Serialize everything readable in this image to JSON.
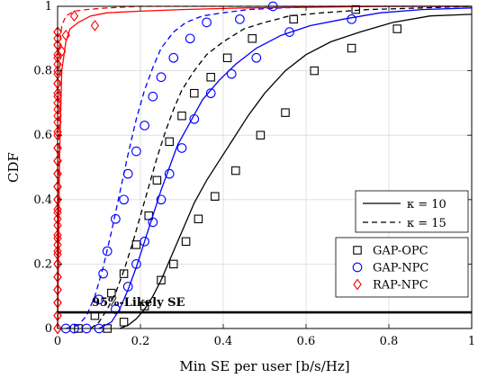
{
  "chart_data": {
    "type": "line",
    "xlabel": "Min SE per user [b/s/Hz]",
    "ylabel": "CDF",
    "xlim": [
      0,
      1
    ],
    "ylim": [
      0,
      1
    ],
    "xticks": [
      0,
      0.2,
      0.4,
      0.6,
      0.8,
      1
    ],
    "yticks": [
      0,
      0.2,
      0.4,
      0.6,
      0.8,
      1
    ],
    "x_tick_labels": [
      "0",
      "0.2",
      "0.4",
      "0.6",
      "0.8",
      "1"
    ],
    "y_tick_labels": [
      "0",
      "0.2",
      "0.4",
      "0.6",
      "0.8",
      "1"
    ],
    "grid": true,
    "legend_placement": "bottom-right",
    "linestyle_legend": [
      {
        "label": "κ = 10",
        "dash": "solid"
      },
      {
        "label": "κ = 15",
        "dash": "dashed"
      }
    ],
    "marker_legend": [
      {
        "label": "GAP-OPC",
        "marker": "square",
        "color": "#000000"
      },
      {
        "label": "GAP-NPC",
        "marker": "circle",
        "color": "#0000ff"
      },
      {
        "label": "RAP-NPC",
        "marker": "diamond",
        "color": "#ff0000"
      }
    ],
    "reference_line": {
      "y": 0.05,
      "label": "95%-Likely SE"
    },
    "series": [
      {
        "scheme": "GAP-OPC",
        "kappa": 10,
        "color": "#000000",
        "marker": "square",
        "dash": "solid",
        "x": [
          0.15,
          0.17,
          0.19,
          0.21,
          0.23,
          0.25,
          0.27,
          0.29,
          0.31,
          0.33,
          0.36,
          0.39,
          0.42,
          0.46,
          0.5,
          0.55,
          0.6,
          0.66,
          0.73,
          0.81,
          0.9,
          1.0
        ],
        "y": [
          0.0,
          0.01,
          0.03,
          0.06,
          0.1,
          0.15,
          0.21,
          0.27,
          0.33,
          0.39,
          0.46,
          0.52,
          0.58,
          0.66,
          0.73,
          0.8,
          0.85,
          0.89,
          0.92,
          0.95,
          0.97,
          0.975
        ],
        "markers_x": [
          0.12,
          0.16,
          0.21,
          0.25,
          0.28,
          0.31,
          0.34,
          0.38,
          0.43,
          0.49,
          0.55,
          0.62,
          0.71,
          0.82
        ],
        "markers_y": [
          0.0,
          0.02,
          0.07,
          0.15,
          0.2,
          0.27,
          0.34,
          0.41,
          0.49,
          0.6,
          0.67,
          0.8,
          0.87,
          0.93
        ]
      },
      {
        "scheme": "GAP-OPC",
        "kappa": 15,
        "color": "#000000",
        "marker": "square",
        "dash": "dashed",
        "x": [
          0.08,
          0.1,
          0.12,
          0.14,
          0.16,
          0.18,
          0.2,
          0.22,
          0.24,
          0.26,
          0.28,
          0.3,
          0.33,
          0.36,
          0.4,
          0.45,
          0.5,
          0.56,
          0.64,
          0.75,
          0.88,
          1.0
        ],
        "y": [
          0.0,
          0.02,
          0.06,
          0.11,
          0.18,
          0.26,
          0.35,
          0.44,
          0.53,
          0.61,
          0.68,
          0.74,
          0.8,
          0.85,
          0.89,
          0.93,
          0.95,
          0.97,
          0.98,
          0.99,
          0.995,
          1.0
        ],
        "markers_x": [
          0.05,
          0.09,
          0.13,
          0.16,
          0.19,
          0.22,
          0.24,
          0.27,
          0.3,
          0.33,
          0.37,
          0.41,
          0.47,
          0.57,
          0.72
        ],
        "markers_y": [
          0.0,
          0.04,
          0.11,
          0.17,
          0.26,
          0.35,
          0.46,
          0.58,
          0.66,
          0.73,
          0.78,
          0.84,
          0.9,
          0.96,
          0.99
        ]
      },
      {
        "scheme": "GAP-NPC",
        "kappa": 10,
        "color": "#0000ff",
        "marker": "circle",
        "dash": "solid",
        "x": [
          0.1,
          0.13,
          0.15,
          0.17,
          0.19,
          0.21,
          0.23,
          0.25,
          0.27,
          0.29,
          0.32,
          0.35,
          0.39,
          0.43,
          0.48,
          0.54,
          0.61,
          0.69,
          0.78,
          0.88,
          1.0
        ],
        "y": [
          0.0,
          0.02,
          0.06,
          0.12,
          0.19,
          0.27,
          0.35,
          0.43,
          0.5,
          0.57,
          0.64,
          0.71,
          0.77,
          0.82,
          0.87,
          0.91,
          0.94,
          0.96,
          0.98,
          0.99,
          0.995
        ],
        "markers_x": [
          0.1,
          0.14,
          0.17,
          0.19,
          0.21,
          0.23,
          0.25,
          0.27,
          0.3,
          0.33,
          0.37,
          0.42,
          0.48,
          0.56,
          0.71
        ],
        "markers_y": [
          0.0,
          0.06,
          0.13,
          0.2,
          0.27,
          0.33,
          0.4,
          0.48,
          0.56,
          0.65,
          0.73,
          0.79,
          0.84,
          0.92,
          0.96
        ]
      },
      {
        "scheme": "GAP-NPC",
        "kappa": 15,
        "color": "#0000ff",
        "marker": "circle",
        "dash": "dashed",
        "x": [
          0.02,
          0.05,
          0.07,
          0.09,
          0.11,
          0.13,
          0.15,
          0.17,
          0.19,
          0.21,
          0.23,
          0.25,
          0.28,
          0.31,
          0.35,
          0.4,
          0.46,
          0.54,
          0.65,
          0.8,
          1.0
        ],
        "y": [
          0.0,
          0.01,
          0.04,
          0.1,
          0.19,
          0.3,
          0.42,
          0.54,
          0.65,
          0.74,
          0.81,
          0.87,
          0.92,
          0.95,
          0.97,
          0.98,
          0.99,
          0.995,
          1.0,
          1.0,
          1.0
        ],
        "markers_x": [
          0.02,
          0.04,
          0.07,
          0.1,
          0.11,
          0.12,
          0.14,
          0.16,
          0.17,
          0.19,
          0.21,
          0.23,
          0.25,
          0.28,
          0.32,
          0.36,
          0.44,
          0.52
        ],
        "markers_y": [
          0.0,
          0.0,
          0.0,
          0.09,
          0.17,
          0.24,
          0.34,
          0.4,
          0.48,
          0.55,
          0.63,
          0.72,
          0.78,
          0.84,
          0.9,
          0.95,
          0.96,
          1.0
        ]
      },
      {
        "scheme": "RAP-NPC",
        "kappa": 10,
        "color": "#ff0000",
        "marker": "diamond",
        "dash": "solid",
        "x": [
          0.0,
          0.005,
          0.01,
          0.02,
          0.03,
          0.05,
          0.08,
          0.12,
          0.2,
          0.3,
          0.45,
          0.6,
          0.8,
          1.0
        ],
        "y": [
          0.0,
          0.55,
          0.8,
          0.89,
          0.93,
          0.95,
          0.97,
          0.98,
          0.985,
          0.99,
          0.995,
          0.997,
          1.0,
          1.0
        ],
        "markers_x": [
          0.0,
          0.0,
          0.0,
          0.0,
          0.0,
          0.0,
          0.0,
          0.0,
          0.0,
          0.0,
          0.0,
          0.0,
          0.0,
          0.0,
          0.0,
          0.0,
          0.0,
          0.0,
          0.0,
          0.0,
          0.0,
          0.0,
          0.0,
          0.0,
          0.0,
          0.0,
          0.0
        ],
        "markers_y": [
          0.0,
          0.04,
          0.08,
          0.12,
          0.16,
          0.2,
          0.23,
          0.26,
          0.29,
          0.34,
          0.37,
          0.4,
          0.44,
          0.48,
          0.52,
          0.56,
          0.61,
          0.66,
          0.7,
          0.73,
          0.76,
          0.79,
          0.82,
          0.85,
          0.88,
          0.9,
          0.92
        ]
      },
      {
        "scheme": "RAP-NPC",
        "kappa": 15,
        "color": "#ff0000",
        "marker": "diamond",
        "dash": "dashed",
        "x": [
          0.0,
          0.005,
          0.01,
          0.02,
          0.04,
          0.07,
          0.12,
          0.2,
          0.35,
          0.55,
          0.8,
          1.0
        ],
        "y": [
          0.0,
          0.88,
          0.94,
          0.97,
          0.985,
          0.99,
          0.995,
          1.0,
          1.0,
          1.0,
          1.0,
          1.0
        ],
        "markers_x": [
          0.0,
          0.0,
          0.0,
          0.0,
          0.0,
          0.0,
          0.0,
          0.0,
          0.0,
          0.0,
          0.0,
          0.0,
          0.0,
          0.0,
          0.0,
          0.0,
          0.0,
          0.0,
          0.0,
          0.0,
          0.0,
          0.0,
          0.0,
          0.0,
          0.01,
          0.02,
          0.04,
          0.09
        ],
        "markers_y": [
          0.0,
          0.04,
          0.08,
          0.12,
          0.16,
          0.2,
          0.24,
          0.28,
          0.32,
          0.36,
          0.4,
          0.44,
          0.48,
          0.52,
          0.56,
          0.6,
          0.64,
          0.68,
          0.72,
          0.76,
          0.8,
          0.84,
          0.88,
          0.92,
          0.86,
          0.91,
          0.97,
          0.94
        ]
      }
    ]
  }
}
